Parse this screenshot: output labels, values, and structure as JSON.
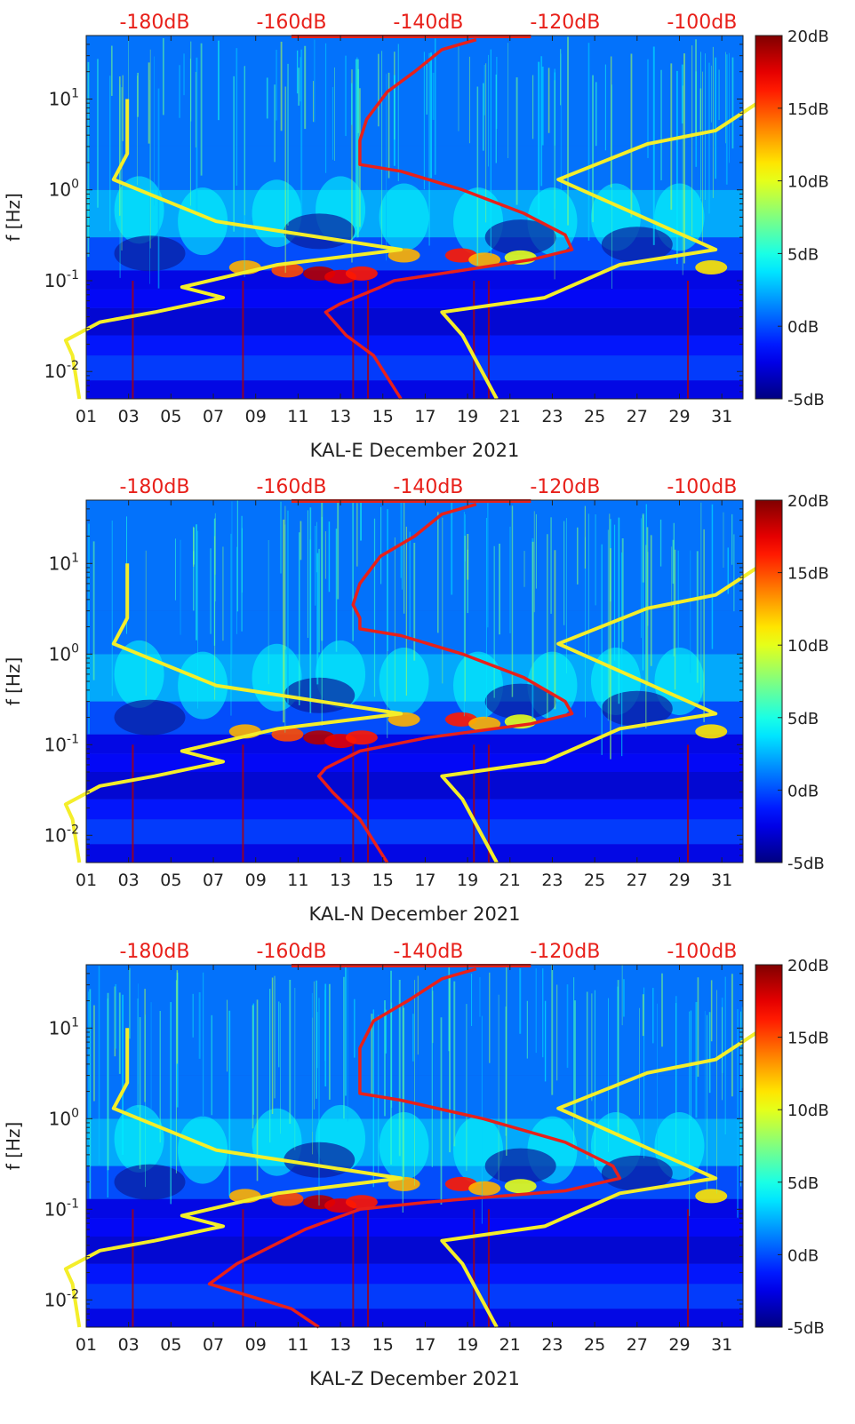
{
  "chart_data": [
    {
      "type": "heatmap",
      "station": "KAL-E",
      "xlabel": "KAL-E December 2021",
      "ylabel": "f [Hz]",
      "x_range_days": [
        1,
        32
      ],
      "y_range_hz": [
        0.005,
        50
      ],
      "y_scale": "log",
      "x_ticks": [
        "01",
        "03",
        "05",
        "07",
        "09",
        "11",
        "13",
        "15",
        "17",
        "19",
        "21",
        "23",
        "25",
        "27",
        "29",
        "31"
      ],
      "y_ticks": [
        {
          "value": 0.01,
          "base": "10",
          "exp": "-2"
        },
        {
          "value": 0.1,
          "base": "10",
          "exp": "-1"
        },
        {
          "value": 1,
          "base": "10",
          "exp": "0"
        },
        {
          "value": 10,
          "base": "10",
          "exp": "1"
        }
      ],
      "top_axis": {
        "labels": [
          "-180dB",
          "-160dB",
          "-140dB",
          "-120dB",
          "-100dB"
        ],
        "range_db": [
          -190,
          -94
        ],
        "color": "#e8201a"
      },
      "colorbar": {
        "range_db": [
          -5,
          20
        ],
        "ticks": [
          "20dB",
          "15dB",
          "10dB",
          "5dB",
          "0dB",
          "-5dB"
        ],
        "colormap": "jet"
      },
      "series": [
        {
          "color": "#f4ee2a",
          "axis": "top",
          "points": [
            [
              -184,
              10
            ],
            [
              -184,
              2.5
            ],
            [
              -186,
              1.3
            ],
            [
              -171,
              0.45
            ],
            [
              -144,
              0.22
            ],
            [
              -162,
              0.15
            ],
            [
              -172,
              0.1
            ],
            [
              -176,
              0.085
            ],
            [
              -170,
              0.065
            ],
            [
              -180,
              0.045
            ],
            [
              -188,
              0.035
            ],
            [
              -193,
              0.022
            ],
            [
              -192,
              0.015
            ],
            [
              -191,
              0.005
            ]
          ]
        },
        {
          "color": "#f4ee2a",
          "axis": "top",
          "points": [
            [
              -91,
              10
            ],
            [
              -98,
              4.5
            ],
            [
              -108,
              3.2
            ],
            [
              -121,
              1.3
            ],
            [
              -98,
              0.22
            ],
            [
              -112,
              0.15
            ],
            [
              -123,
              0.065
            ],
            [
              -138,
              0.045
            ],
            [
              -135,
              0.025
            ],
            [
              -130,
              0.005
            ]
          ]
        },
        {
          "color": "#e8201a",
          "axis": "top",
          "points": [
            [
              -133,
              45
            ],
            [
              -138,
              35
            ],
            [
              -142,
              20
            ],
            [
              -146,
              12
            ],
            [
              -149,
              6
            ],
            [
              -150,
              3.5
            ],
            [
              -150,
              2.5
            ],
            [
              -150,
              1.9
            ],
            [
              -144,
              1.6
            ],
            [
              -135,
              1.0
            ],
            [
              -126,
              0.55
            ],
            [
              -120,
              0.32
            ],
            [
              -119,
              0.22
            ],
            [
              -125,
              0.17
            ],
            [
              -135,
              0.13
            ],
            [
              -145,
              0.1
            ],
            [
              -147,
              0.085
            ],
            [
              -153,
              0.055
            ],
            [
              -155,
              0.045
            ],
            [
              -152,
              0.025
            ],
            [
              -148,
              0.015
            ],
            [
              -144,
              0.005
            ]
          ]
        }
      ]
    },
    {
      "type": "heatmap",
      "station": "KAL-N",
      "xlabel": "KAL-N December 2021",
      "ylabel": "f [Hz]",
      "x_range_days": [
        1,
        32
      ],
      "y_range_hz": [
        0.005,
        50
      ],
      "y_scale": "log",
      "x_ticks": [
        "01",
        "03",
        "05",
        "07",
        "09",
        "11",
        "13",
        "15",
        "17",
        "19",
        "21",
        "23",
        "25",
        "27",
        "29",
        "31"
      ],
      "y_ticks": [
        {
          "value": 0.01,
          "base": "10",
          "exp": "-2"
        },
        {
          "value": 0.1,
          "base": "10",
          "exp": "-1"
        },
        {
          "value": 1,
          "base": "10",
          "exp": "0"
        },
        {
          "value": 10,
          "base": "10",
          "exp": "1"
        }
      ],
      "top_axis": {
        "labels": [
          "-180dB",
          "-160dB",
          "-140dB",
          "-120dB",
          "-100dB"
        ],
        "range_db": [
          -190,
          -94
        ],
        "color": "#e8201a"
      },
      "colorbar": {
        "range_db": [
          -5,
          20
        ],
        "ticks": [
          "20dB",
          "15dB",
          "10dB",
          "5dB",
          "0dB",
          "-5dB"
        ],
        "colormap": "jet"
      },
      "series": [
        {
          "color": "#f4ee2a",
          "axis": "top",
          "points": [
            [
              -184,
              10
            ],
            [
              -184,
              2.5
            ],
            [
              -186,
              1.3
            ],
            [
              -171,
              0.45
            ],
            [
              -144,
              0.22
            ],
            [
              -162,
              0.15
            ],
            [
              -172,
              0.1
            ],
            [
              -176,
              0.085
            ],
            [
              -170,
              0.065
            ],
            [
              -180,
              0.045
            ],
            [
              -188,
              0.035
            ],
            [
              -193,
              0.022
            ],
            [
              -192,
              0.015
            ],
            [
              -191,
              0.005
            ]
          ]
        },
        {
          "color": "#f4ee2a",
          "axis": "top",
          "points": [
            [
              -91,
              10
            ],
            [
              -98,
              4.5
            ],
            [
              -108,
              3.2
            ],
            [
              -121,
              1.3
            ],
            [
              -98,
              0.22
            ],
            [
              -112,
              0.15
            ],
            [
              -123,
              0.065
            ],
            [
              -138,
              0.045
            ],
            [
              -135,
              0.025
            ],
            [
              -130,
              0.005
            ]
          ]
        },
        {
          "color": "#e8201a",
          "axis": "top",
          "points": [
            [
              -133,
              45
            ],
            [
              -138,
              35
            ],
            [
              -142,
              20
            ],
            [
              -147,
              12
            ],
            [
              -150,
              6
            ],
            [
              -151,
              3.5
            ],
            [
              -150,
              2.5
            ],
            [
              -150,
              1.9
            ],
            [
              -144,
              1.6
            ],
            [
              -135,
              1.0
            ],
            [
              -126,
              0.55
            ],
            [
              -120,
              0.3
            ],
            [
              -119,
              0.22
            ],
            [
              -125,
              0.17
            ],
            [
              -140,
              0.12
            ],
            [
              -150,
              0.085
            ],
            [
              -155,
              0.055
            ],
            [
              -156,
              0.045
            ],
            [
              -154,
              0.03
            ],
            [
              -150,
              0.015
            ],
            [
              -146,
              0.005
            ]
          ]
        }
      ]
    },
    {
      "type": "heatmap",
      "station": "KAL-Z",
      "xlabel": "KAL-Z December 2021",
      "ylabel": "f [Hz]",
      "x_range_days": [
        1,
        32
      ],
      "y_range_hz": [
        0.005,
        50
      ],
      "y_scale": "log",
      "x_ticks": [
        "01",
        "03",
        "05",
        "07",
        "09",
        "11",
        "13",
        "15",
        "17",
        "19",
        "21",
        "23",
        "25",
        "27",
        "29",
        "31"
      ],
      "y_ticks": [
        {
          "value": 0.01,
          "base": "10",
          "exp": "-2"
        },
        {
          "value": 0.1,
          "base": "10",
          "exp": "-1"
        },
        {
          "value": 1,
          "base": "10",
          "exp": "0"
        },
        {
          "value": 10,
          "base": "10",
          "exp": "1"
        }
      ],
      "top_axis": {
        "labels": [
          "-180dB",
          "-160dB",
          "-140dB",
          "-120dB",
          "-100dB"
        ],
        "range_db": [
          -190,
          -94
        ],
        "color": "#e8201a"
      },
      "colorbar": {
        "range_db": [
          -5,
          20
        ],
        "ticks": [
          "20dB",
          "15dB",
          "10dB",
          "5dB",
          "0dB",
          "-5dB"
        ],
        "colormap": "jet"
      },
      "series": [
        {
          "color": "#f4ee2a",
          "axis": "top",
          "points": [
            [
              -184,
              10
            ],
            [
              -184,
              2.5
            ],
            [
              -186,
              1.3
            ],
            [
              -171,
              0.45
            ],
            [
              -144,
              0.22
            ],
            [
              -162,
              0.15
            ],
            [
              -172,
              0.1
            ],
            [
              -176,
              0.085
            ],
            [
              -170,
              0.065
            ],
            [
              -180,
              0.045
            ],
            [
              -188,
              0.035
            ],
            [
              -193,
              0.022
            ],
            [
              -192,
              0.015
            ],
            [
              -191,
              0.005
            ]
          ]
        },
        {
          "color": "#f4ee2a",
          "axis": "top",
          "points": [
            [
              -91,
              10
            ],
            [
              -98,
              4.5
            ],
            [
              -108,
              3.2
            ],
            [
              -121,
              1.3
            ],
            [
              -98,
              0.22
            ],
            [
              -112,
              0.15
            ],
            [
              -123,
              0.065
            ],
            [
              -138,
              0.045
            ],
            [
              -135,
              0.025
            ],
            [
              -130,
              0.005
            ]
          ]
        },
        {
          "color": "#e8201a",
          "axis": "top",
          "points": [
            [
              -133,
              45
            ],
            [
              -138,
              35
            ],
            [
              -143,
              20
            ],
            [
              -148,
              12
            ],
            [
              -150,
              6
            ],
            [
              -150,
              3.5
            ],
            [
              -150,
              2.5
            ],
            [
              -150,
              1.9
            ],
            [
              -144,
              1.6
            ],
            [
              -132,
              1.0
            ],
            [
              -120,
              0.55
            ],
            [
              -113,
              0.3
            ],
            [
              -112,
              0.22
            ],
            [
              -120,
              0.16
            ],
            [
              -140,
              0.12
            ],
            [
              -150,
              0.1
            ],
            [
              -158,
              0.06
            ],
            [
              -168,
              0.025
            ],
            [
              -172,
              0.015
            ],
            [
              -160,
              0.008
            ],
            [
              -156,
              0.005
            ]
          ]
        }
      ]
    }
  ]
}
